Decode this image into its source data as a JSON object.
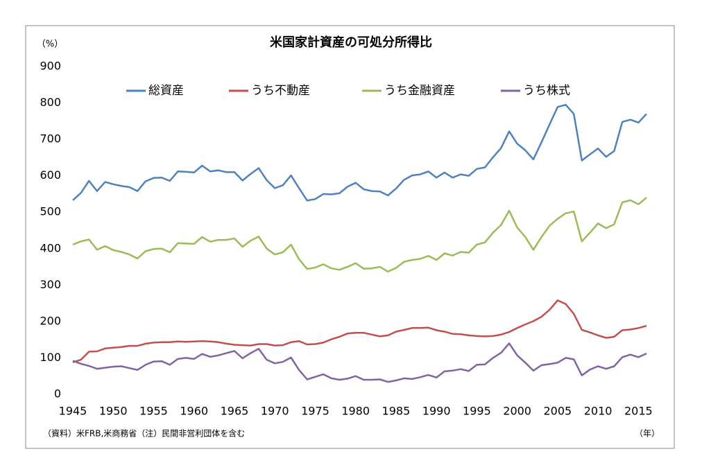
{
  "chart_data": {
    "type": "line",
    "title": "米国家計資産の可処分所得比",
    "y_unit": "（%）",
    "x_unit": "（年）",
    "source": "（資料）米FRB,米商務省（注）民間非営利団体を含む",
    "x": [
      1945,
      1946,
      1947,
      1948,
      1949,
      1950,
      1951,
      1952,
      1953,
      1954,
      1955,
      1956,
      1957,
      1958,
      1959,
      1960,
      1961,
      1962,
      1963,
      1964,
      1965,
      1966,
      1967,
      1968,
      1969,
      1970,
      1971,
      1972,
      1973,
      1974,
      1975,
      1976,
      1977,
      1978,
      1979,
      1980,
      1981,
      1982,
      1983,
      1984,
      1985,
      1986,
      1987,
      1988,
      1989,
      1990,
      1991,
      1992,
      1993,
      1994,
      1995,
      1996,
      1997,
      1998,
      1999,
      2000,
      2001,
      2002,
      2003,
      2004,
      2005,
      2006,
      2007,
      2008,
      2009,
      2010,
      2011,
      2012,
      2013,
      2014,
      2015,
      2016
    ],
    "series": [
      {
        "name": "総資産",
        "color": "#4f81bd",
        "values": [
          533,
          553,
          586,
          558,
          583,
          577,
          572,
          569,
          558,
          585,
          594,
          595,
          586,
          612,
          611,
          609,
          628,
          612,
          615,
          610,
          610,
          587,
          605,
          621,
          588,
          566,
          574,
          601,
          566,
          532,
          536,
          550,
          549,
          552,
          570,
          581,
          563,
          558,
          557,
          546,
          565,
          589,
          601,
          604,
          612,
          595,
          609,
          595,
          604,
          600,
          619,
          623,
          651,
          676,
          722,
          688,
          670,
          645,
          692,
          741,
          789,
          795,
          770,
          642,
          659,
          675,
          652,
          668,
          748,
          754,
          746,
          770
        ]
      },
      {
        "name": "うち不動産",
        "color": "#c0504d",
        "values": [
          88,
          95,
          117,
          118,
          126,
          128,
          130,
          133,
          133,
          139,
          142,
          143,
          143,
          145,
          144,
          145,
          146,
          145,
          143,
          139,
          136,
          135,
          134,
          138,
          138,
          134,
          135,
          143,
          146,
          137,
          138,
          142,
          151,
          158,
          167,
          169,
          169,
          164,
          159,
          162,
          172,
          177,
          182,
          182,
          183,
          176,
          172,
          166,
          165,
          162,
          160,
          159,
          160,
          164,
          171,
          182,
          192,
          201,
          213,
          232,
          258,
          248,
          221,
          177,
          170,
          162,
          155,
          158,
          176,
          178,
          182,
          188
        ]
      },
      {
        "name": "うち金融資産",
        "color": "#9bbb59",
        "values": [
          411,
          420,
          425,
          397,
          407,
          396,
          391,
          384,
          373,
          393,
          399,
          400,
          390,
          415,
          414,
          413,
          432,
          419,
          424,
          424,
          428,
          405,
          422,
          433,
          400,
          384,
          390,
          411,
          371,
          344,
          348,
          357,
          346,
          342,
          350,
          360,
          345,
          346,
          350,
          337,
          347,
          364,
          369,
          372,
          380,
          369,
          387,
          381,
          391,
          389,
          411,
          417,
          444,
          465,
          504,
          458,
          432,
          397,
          432,
          463,
          482,
          497,
          502,
          420,
          444,
          469,
          456,
          467,
          527,
          533,
          522,
          540
        ]
      },
      {
        "name": "うち株式",
        "color": "#8064a2",
        "values": [
          92,
          84,
          78,
          70,
          73,
          76,
          77,
          72,
          67,
          81,
          90,
          91,
          81,
          97,
          100,
          97,
          111,
          103,
          107,
          113,
          119,
          99,
          113,
          125,
          95,
          85,
          89,
          101,
          67,
          41,
          48,
          55,
          44,
          40,
          43,
          50,
          40,
          40,
          41,
          34,
          38,
          44,
          42,
          47,
          53,
          46,
          63,
          65,
          69,
          64,
          81,
          82,
          100,
          114,
          140,
          107,
          87,
          65,
          80,
          83,
          87,
          100,
          96,
          52,
          68,
          77,
          70,
          77,
          102,
          109,
          102,
          112
        ]
      }
    ],
    "xlim": [
      1945,
      2016
    ],
    "xticks": [
      1945,
      1950,
      1955,
      1960,
      1965,
      1970,
      1975,
      1980,
      1985,
      1990,
      1995,
      2000,
      2005,
      2010,
      2015
    ],
    "ylim": [
      0,
      900
    ],
    "yticks": [
      0,
      100,
      200,
      300,
      400,
      500,
      600,
      700,
      800,
      900
    ],
    "grid": false,
    "legend": "top"
  }
}
